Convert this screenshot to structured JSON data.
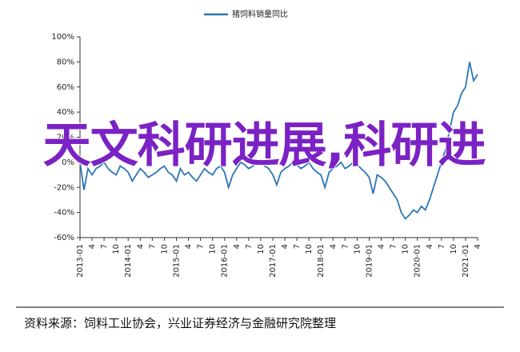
{
  "chart_data": {
    "type": "line",
    "title": null,
    "series": [
      {
        "name": "猪饲料销量同比",
        "color": "#2e75b6",
        "values": [
          0,
          -22,
          -5,
          -10,
          -5,
          -3,
          0,
          -5,
          -8,
          -10,
          -3,
          -5,
          -8,
          -15,
          -10,
          -5,
          -8,
          -12,
          -10,
          -8,
          -5,
          -3,
          -8,
          -10,
          -15,
          -5,
          -10,
          -8,
          -12,
          -15,
          -10,
          -5,
          -8,
          -10,
          -5,
          -3,
          -8,
          -20,
          -10,
          -5,
          0,
          -2,
          -5,
          -3,
          0,
          2,
          -3,
          -5,
          -10,
          -18,
          -8,
          -5,
          -3,
          0,
          -2,
          -5,
          -3,
          0,
          -5,
          -8,
          -10,
          -20,
          -8,
          -5,
          -3,
          0,
          -5,
          -3,
          0,
          -2,
          -5,
          -8,
          -12,
          -25,
          -10,
          -12,
          -15,
          -20,
          -25,
          -30,
          -40,
          -45,
          -42,
          -38,
          -40,
          -35,
          -38,
          -30,
          -20,
          -10,
          0,
          10,
          25,
          40,
          45,
          55,
          60,
          80,
          65,
          70
        ]
      }
    ],
    "categories": [
      "2013-01",
      null,
      null,
      "4",
      null,
      null,
      "7",
      null,
      null,
      "10",
      null,
      null,
      "2014-01",
      null,
      null,
      "4",
      null,
      null,
      "7",
      null,
      null,
      "10",
      null,
      null,
      "2015-01",
      null,
      null,
      "4",
      null,
      null,
      "7",
      null,
      null,
      "10",
      null,
      null,
      "2016-01",
      null,
      null,
      "4",
      null,
      null,
      "7",
      null,
      null,
      "10",
      null,
      null,
      "2017-01",
      null,
      null,
      "4",
      null,
      null,
      "7",
      null,
      null,
      "10",
      null,
      null,
      "2018-01",
      null,
      null,
      "4",
      null,
      null,
      "7",
      null,
      null,
      "10",
      null,
      null,
      "2019-01",
      null,
      null,
      "4",
      null,
      null,
      "7",
      null,
      null,
      "10",
      null,
      null,
      "2020-01",
      null,
      null,
      "4",
      null,
      null,
      "7",
      null,
      null,
      "10",
      null,
      null,
      "2021-01",
      null,
      null,
      "4"
    ],
    "ylim": [
      -60,
      100
    ],
    "yticks": [
      {
        "value": -60,
        "label": "-60%"
      },
      {
        "value": -40,
        "label": "-40%"
      },
      {
        "value": -20,
        "label": "-20%"
      },
      {
        "value": 0,
        "label": "0%"
      },
      {
        "value": 20,
        "label": "20%"
      },
      {
        "value": 40,
        "label": "40%"
      },
      {
        "value": 60,
        "label": "60%"
      },
      {
        "value": 80,
        "label": "80%"
      },
      {
        "value": 100,
        "label": "100%"
      }
    ],
    "overlay_text": "天文科研进展,科研进",
    "source": "资料来源：饲料工业协会，兴业证券经济与金融研究院整理"
  }
}
